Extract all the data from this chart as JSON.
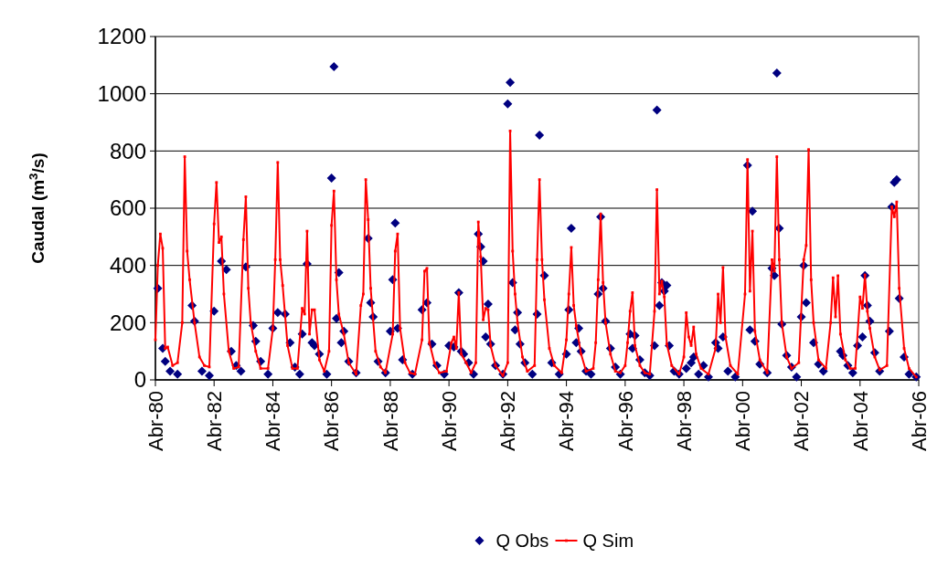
{
  "chart_data": {
    "type": "line",
    "ylabel": "Caudal (m$^{3}$/s)",
    "xlim": [
      "1980-04",
      "2006-04"
    ],
    "xticks": [
      {
        "value": "1980-04",
        "label": "Abr-80"
      },
      {
        "value": "1982-04",
        "label": "Abr-82"
      },
      {
        "value": "1984-04",
        "label": "Abr-84"
      },
      {
        "value": "1986-04",
        "label": "Abr-86"
      },
      {
        "value": "1988-04",
        "label": "Abr-88"
      },
      {
        "value": "1990-04",
        "label": "Abr-90"
      },
      {
        "value": "1992-04",
        "label": "Abr-92"
      },
      {
        "value": "1994-04",
        "label": "Abr-94"
      },
      {
        "value": "1996-04",
        "label": "Abr-96"
      },
      {
        "value": "1998-04",
        "label": "Abr-98"
      },
      {
        "value": "2000-04",
        "label": "Abr-00"
      },
      {
        "value": "2002-04",
        "label": "Abr-02"
      },
      {
        "value": "2004-04",
        "label": "Abr-04"
      },
      {
        "value": "2006-04",
        "label": "Abr-06"
      }
    ],
    "ylim": [
      0,
      1200
    ],
    "yticks": [
      0,
      200,
      400,
      600,
      800,
      1000,
      1200
    ],
    "grid": "y",
    "legend": "bottom",
    "series": [
      {
        "name": "Q Obs",
        "type": "scatter",
        "marker": "diamond",
        "color": "#000080",
        "x": [
          "1980-05",
          "1980-07",
          "1980-08",
          "1980-10",
          "1981-01",
          "1981-07",
          "1981-08",
          "1981-11",
          "1982-02",
          "1982-04",
          "1982-07",
          "1982-09",
          "1982-11",
          "1983-01",
          "1983-03",
          "1983-05",
          "1983-08",
          "1983-09",
          "1983-11",
          "1984-02",
          "1984-04",
          "1984-06",
          "1984-09",
          "1984-11",
          "1985-01",
          "1985-03",
          "1985-04",
          "1985-06",
          "1985-08",
          "1985-09",
          "1985-11",
          "1986-02",
          "1986-04",
          "1986-05",
          "1986-06",
          "1986-07",
          "1986-08",
          "1986-09",
          "1986-11",
          "1987-02",
          "1987-07",
          "1987-08",
          "1987-09",
          "1987-11",
          "1988-02",
          "1988-04",
          "1988-05",
          "1988-06",
          "1988-07",
          "1988-09",
          "1989-01",
          "1989-05",
          "1989-07",
          "1989-09",
          "1989-11",
          "1990-02",
          "1990-04",
          "1990-06",
          "1990-08",
          "1990-09",
          "1990-10",
          "1990-12",
          "1991-02",
          "1991-04",
          "1991-05",
          "1991-06",
          "1991-07",
          "1991-08",
          "1991-09",
          "1991-11",
          "1992-02",
          "1992-04",
          "1992-05",
          "1992-06",
          "1992-07",
          "1992-08",
          "1992-09",
          "1992-11",
          "1993-02",
          "1993-04",
          "1993-05",
          "1993-07",
          "1993-10",
          "1994-01",
          "1994-04",
          "1994-05",
          "1994-06",
          "1994-08",
          "1994-09",
          "1994-10",
          "1994-12",
          "1995-02",
          "1995-05",
          "1995-06",
          "1995-07",
          "1995-08",
          "1995-10",
          "1995-12",
          "1996-02",
          "1996-06",
          "1996-07",
          "1996-08",
          "1996-10",
          "1996-12",
          "1997-02",
          "1997-04",
          "1997-05",
          "1997-06",
          "1997-07",
          "1997-08",
          "1997-09",
          "1997-10",
          "1997-12",
          "1998-02",
          "1998-05",
          "1998-07",
          "1998-08",
          "1998-10",
          "1998-12",
          "1999-02",
          "1999-05",
          "1999-06",
          "1999-08",
          "1999-10",
          "2000-01",
          "2000-06",
          "2000-07",
          "2000-08",
          "2000-09",
          "2000-11",
          "2001-02",
          "2001-04",
          "2001-05",
          "2001-06",
          "2001-07",
          "2001-08",
          "2001-10",
          "2001-12",
          "2002-02",
          "2002-04",
          "2002-05",
          "2002-06",
          "2002-09",
          "2002-11",
          "2003-01",
          "2003-08",
          "2003-09",
          "2003-11",
          "2004-01",
          "2004-03",
          "2004-05",
          "2004-06",
          "2004-07",
          "2004-08",
          "2004-10",
          "2004-12",
          "2005-04",
          "2005-05",
          "2005-06",
          "2005-07",
          "2005-08",
          "2005-10",
          "2005-12",
          "2006-03"
        ],
        "values": [
          320,
          110,
          65,
          30,
          20,
          260,
          205,
          30,
          15,
          240,
          415,
          385,
          100,
          50,
          30,
          395,
          190,
          135,
          65,
          20,
          180,
          235,
          230,
          130,
          45,
          20,
          160,
          405,
          130,
          120,
          90,
          20,
          705,
          1095,
          215,
          375,
          130,
          170,
          65,
          25,
          495,
          270,
          220,
          65,
          25,
          170,
          350,
          548,
          180,
          70,
          20,
          245,
          270,
          125,
          50,
          20,
          120,
          115,
          305,
          100,
          90,
          60,
          20,
          510,
          465,
          415,
          150,
          265,
          125,
          50,
          20,
          965,
          1040,
          340,
          175,
          235,
          125,
          60,
          20,
          230,
          855,
          365,
          60,
          20,
          90,
          245,
          530,
          130,
          180,
          100,
          30,
          20,
          300,
          570,
          320,
          205,
          110,
          45,
          20,
          160,
          110,
          155,
          70,
          25,
          15,
          120,
          943,
          260,
          340,
          310,
          330,
          120,
          30,
          20,
          40,
          60,
          80,
          20,
          50,
          10,
          130,
          110,
          150,
          30,
          10,
          750,
          175,
          590,
          135,
          55,
          25,
          390,
          365,
          1072,
          530,
          195,
          85,
          45,
          10,
          220,
          400,
          270,
          130,
          55,
          30,
          100,
          85,
          50,
          25,
          120,
          150,
          365,
          260,
          205,
          95,
          30,
          170,
          605,
          690,
          700,
          285,
          80,
          20,
          10
        ]
      },
      {
        "name": "Q Sim",
        "marker": "square",
        "color": "#ff0000",
        "x": [
          "1980-04",
          "1980-05",
          "1980-06",
          "1980-07",
          "1980-08",
          "1980-09",
          "1980-11",
          "1981-01",
          "1981-03",
          "1981-04",
          "1981-05",
          "1981-06",
          "1981-08",
          "1981-10",
          "1981-12",
          "1982-02",
          "1982-04",
          "1982-05",
          "1982-06",
          "1982-07",
          "1982-08",
          "1982-10",
          "1982-12",
          "1983-02",
          "1983-04",
          "1983-05",
          "1983-06",
          "1983-07",
          "1983-09",
          "1983-11",
          "1984-02",
          "1984-04",
          "1984-05",
          "1984-06",
          "1984-07",
          "1984-08",
          "1984-10",
          "1984-12",
          "1985-02",
          "1985-04",
          "1985-05",
          "1985-06",
          "1985-07",
          "1985-08",
          "1985-09",
          "1985-11",
          "1986-01",
          "1986-03",
          "1986-04",
          "1986-05",
          "1986-06",
          "1986-07",
          "1986-09",
          "1986-11",
          "1987-02",
          "1987-04",
          "1987-05",
          "1987-06",
          "1987-07",
          "1987-08",
          "1987-10",
          "1987-12",
          "1988-02",
          "1988-05",
          "1988-06",
          "1988-07",
          "1988-08",
          "1988-10",
          "1988-12",
          "1989-02",
          "1989-05",
          "1989-06",
          "1989-07",
          "1989-08",
          "1989-10",
          "1989-12",
          "1990-03",
          "1990-05",
          "1990-06",
          "1990-07",
          "1990-08",
          "1990-09",
          "1990-11",
          "1991-01",
          "1991-03",
          "1991-04",
          "1991-05",
          "1991-06",
          "1991-07",
          "1991-08",
          "1991-09",
          "1991-11",
          "1992-02",
          "1992-04",
          "1992-05",
          "1992-06",
          "1992-07",
          "1992-08",
          "1992-10",
          "1992-12",
          "1993-03",
          "1993-04",
          "1993-05",
          "1993-06",
          "1993-07",
          "1993-09",
          "1993-11",
          "1994-02",
          "1994-04",
          "1994-05",
          "1994-06",
          "1994-07",
          "1994-08",
          "1994-10",
          "1994-12",
          "1995-03",
          "1995-04",
          "1995-05",
          "1995-06",
          "1995-07",
          "1995-08",
          "1995-10",
          "1995-12",
          "1996-02",
          "1996-04",
          "1996-05",
          "1996-06",
          "1996-07",
          "1996-08",
          "1996-10",
          "1996-12",
          "1997-02",
          "1997-04",
          "1997-05",
          "1997-06",
          "1997-07",
          "1997-08",
          "1997-09",
          "1997-11",
          "1998-02",
          "1998-04",
          "1998-05",
          "1998-06",
          "1998-07",
          "1998-08",
          "1998-09",
          "1998-11",
          "1999-02",
          "1999-05",
          "1999-06",
          "1999-07",
          "1999-08",
          "1999-09",
          "1999-11",
          "2000-02",
          "2000-05",
          "2000-06",
          "2000-07",
          "2000-08",
          "2000-09",
          "2000-11",
          "2001-02",
          "2001-04",
          "2001-05",
          "2001-06",
          "2001-07",
          "2001-08",
          "2001-10",
          "2001-12",
          "2002-03",
          "2002-05",
          "2002-06",
          "2002-07",
          "2002-08",
          "2002-09",
          "2002-11",
          "2003-02",
          "2003-04",
          "2003-05",
          "2003-06",
          "2003-07",
          "2003-08",
          "2003-10",
          "2003-12",
          "2004-02",
          "2004-04",
          "2004-05",
          "2004-06",
          "2004-07",
          "2004-08",
          "2004-10",
          "2004-12",
          "2005-03",
          "2005-05",
          "2005-06",
          "2005-07",
          "2005-08",
          "2005-10",
          "2005-12",
          "2006-03"
        ],
        "values": [
          140,
          400,
          510,
          460,
          110,
          115,
          50,
          60,
          200,
          780,
          450,
          350,
          200,
          80,
          50,
          45,
          545,
          690,
          480,
          500,
          300,
          100,
          40,
          45,
          490,
          640,
          320,
          200,
          100,
          40,
          40,
          180,
          420,
          760,
          420,
          330,
          120,
          40,
          40,
          250,
          230,
          520,
          160,
          245,
          245,
          70,
          30,
          100,
          540,
          660,
          350,
          230,
          160,
          60,
          20,
          260,
          300,
          700,
          560,
          320,
          100,
          45,
          25,
          160,
          450,
          510,
          180,
          60,
          25,
          20,
          140,
          380,
          390,
          130,
          60,
          25,
          30,
          130,
          150,
          110,
          305,
          90,
          60,
          25,
          60,
          552,
          430,
          210,
          250,
          245,
          120,
          50,
          15,
          60,
          870,
          450,
          300,
          200,
          80,
          30,
          50,
          420,
          700,
          420,
          280,
          110,
          50,
          25,
          140,
          300,
          463,
          260,
          190,
          90,
          30,
          40,
          130,
          350,
          580,
          340,
          200,
          90,
          30,
          25,
          50,
          130,
          240,
          305,
          120,
          50,
          25,
          20,
          240,
          665,
          300,
          345,
          290,
          125,
          50,
          20,
          80,
          235,
          150,
          120,
          185,
          90,
          40,
          20,
          110,
          300,
          200,
          393,
          150,
          50,
          20,
          300,
          770,
          310,
          520,
          170,
          70,
          25,
          420,
          380,
          780,
          420,
          200,
          80,
          40,
          60,
          420,
          470,
          805,
          350,
          200,
          70,
          40,
          200,
          357,
          220,
          364,
          160,
          70,
          40,
          40,
          290,
          250,
          367,
          240,
          180,
          80,
          35,
          50,
          605,
          570,
          622,
          320,
          110,
          40,
          10
        ]
      }
    ]
  }
}
